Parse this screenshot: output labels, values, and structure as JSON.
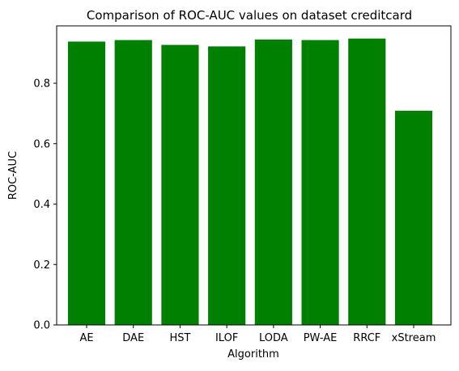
{
  "chart_data": {
    "type": "bar",
    "title": "Comparison of ROC-AUC values on dataset creditcard",
    "xlabel": "Algorithm",
    "ylabel": "ROC-AUC",
    "categories": [
      "AE",
      "DAE",
      "HST",
      "ILOF",
      "LODA",
      "PW-AE",
      "RRCF",
      "xStream"
    ],
    "values": [
      0.938,
      0.943,
      0.927,
      0.922,
      0.945,
      0.943,
      0.948,
      0.709
    ],
    "ylim": [
      0,
      0.99
    ],
    "yticks": [
      0.0,
      0.2,
      0.4,
      0.6,
      0.8
    ],
    "ytick_labels": [
      "0.0",
      "0.2",
      "0.4",
      "0.6",
      "0.8"
    ],
    "bar_color": "#008000",
    "grid": false,
    "legend": "none"
  }
}
